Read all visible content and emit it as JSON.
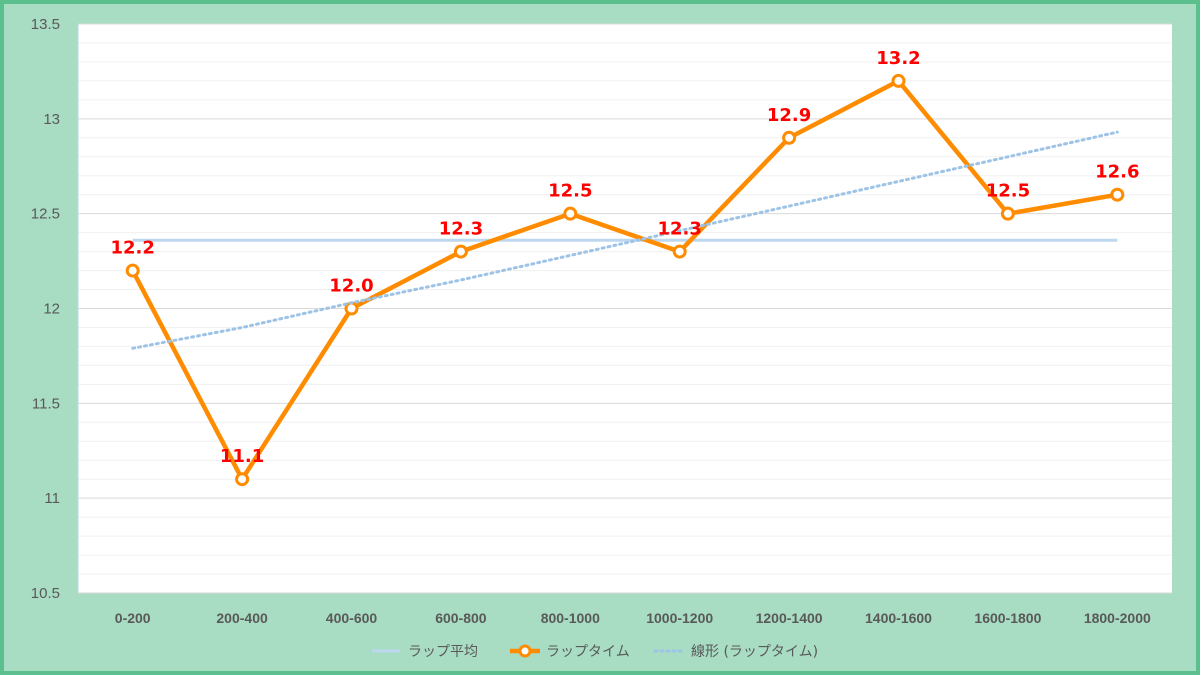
{
  "colors": {
    "background": "#a8dcc3",
    "border": "#5cbf8e",
    "plot_area": "#ffffff",
    "lap_line": "#ff8c00",
    "average_line": "#bdd7ee",
    "trend_line": "#9dc3e6",
    "data_label": "#ff0000"
  },
  "chart_data": {
    "type": "line",
    "categories": [
      "0-200",
      "200-400",
      "400-600",
      "600-800",
      "800-1000",
      "1000-1200",
      "1200-1400",
      "1400-1600",
      "1600-1800",
      "1800-2000"
    ],
    "ylim": [
      10.5,
      13.5
    ],
    "yticks": [
      "10.5",
      "11",
      "11.5",
      "12",
      "12.5",
      "13",
      "13.5"
    ],
    "grid": true,
    "legend_position": "bottom",
    "series": [
      {
        "name": "ラップ平均",
        "kind": "average",
        "values": [
          12.36,
          12.36,
          12.36,
          12.36,
          12.36,
          12.36,
          12.36,
          12.36,
          12.36,
          12.36
        ]
      },
      {
        "name": "ラップタイム",
        "kind": "data",
        "values": [
          12.2,
          11.1,
          12.0,
          12.3,
          12.5,
          12.3,
          12.9,
          13.2,
          12.5,
          12.6
        ],
        "labels": [
          "12.2",
          "11.1",
          "12.0",
          "12.3",
          "12.5",
          "12.3",
          "12.9",
          "13.2",
          "12.5",
          "12.6"
        ]
      },
      {
        "name": "線形 (ラップタイム)",
        "kind": "trend",
        "values": [
          11.79,
          11.9,
          12.03,
          12.15,
          12.28,
          12.41,
          12.54,
          12.67,
          12.8,
          12.93
        ]
      }
    ]
  }
}
